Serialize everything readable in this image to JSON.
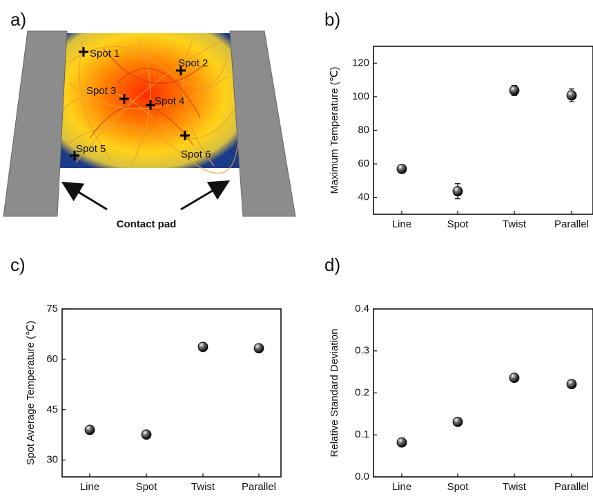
{
  "diagram": {
    "label": "a)",
    "spots": [
      "Spot 1",
      "Spot 2",
      "Spot 3",
      "Spot 4",
      "Spot 5",
      "Spot 6"
    ],
    "caption": "Contact pad"
  },
  "chart_data": [
    {
      "type": "scatter",
      "label": "b)",
      "ylabel": "Maximum Temperature (℃)",
      "categories": [
        "Line",
        "Spot",
        "Twist",
        "Parallel"
      ],
      "values": [
        57,
        43.7,
        103.7,
        100.8
      ],
      "errors": [
        1.2,
        4.5,
        3,
        3.8
      ],
      "ylim": [
        30,
        130
      ],
      "yticks": [
        40,
        60,
        80,
        100,
        120
      ]
    },
    {
      "type": "scatter",
      "label": "c)",
      "ylabel": "Spot Average Temperature (℃)",
      "categories": [
        "Line",
        "Spot",
        "Twist",
        "Parallel"
      ],
      "values": [
        39,
        37.6,
        63.7,
        63.3
      ],
      "ylim": [
        25,
        75
      ],
      "yticks": [
        30,
        45,
        60,
        75
      ]
    },
    {
      "type": "scatter",
      "label": "d)",
      "ylabel": "Relative Standard Deviation",
      "categories": [
        "Line",
        "Spot",
        "Twist",
        "Parallel"
      ],
      "values": [
        0.082,
        0.131,
        0.236,
        0.221
      ],
      "ylim": [
        0,
        0.4
      ],
      "yticks": [
        {
          "value": 0,
          "label": "0.0"
        },
        0.1,
        0.2,
        0.3,
        0.4
      ]
    }
  ]
}
